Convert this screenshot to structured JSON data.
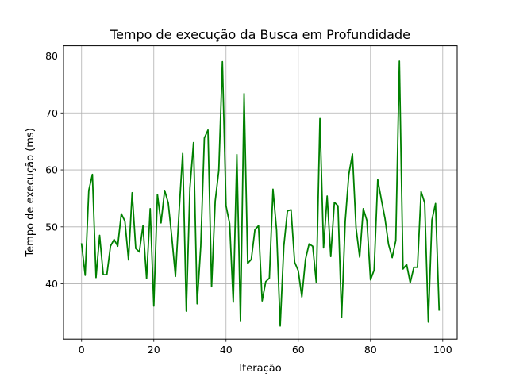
{
  "chart_data": {
    "type": "line",
    "title": "Tempo de execução da Busca em Profundidade",
    "xlabel": "Iteração",
    "ylabel": "Tempo de execução (ms)",
    "xlim": [
      -5,
      104
    ],
    "ylim": [
      30.3,
      81.8
    ],
    "xticks": [
      0,
      20,
      40,
      60,
      80,
      100
    ],
    "yticks": [
      40,
      50,
      60,
      70,
      80
    ],
    "grid": true,
    "line_color": "#008000",
    "series": [
      {
        "x": [
          0,
          1,
          2,
          3,
          4,
          5,
          6,
          7,
          8,
          9,
          10,
          11,
          12,
          13,
          14,
          15,
          16,
          17,
          18,
          19,
          20,
          21,
          22,
          23,
          24,
          25,
          26,
          27,
          28,
          29,
          30,
          31,
          32,
          33,
          34,
          35,
          36,
          37,
          38,
          39,
          40,
          41,
          42,
          43,
          44,
          45,
          46,
          47,
          48,
          49,
          50,
          51,
          52,
          53,
          54,
          55,
          56,
          57,
          58,
          59,
          60,
          61,
          62,
          63,
          64,
          65,
          66,
          67,
          68,
          69,
          70,
          71,
          72,
          73,
          74,
          75,
          76,
          77,
          78,
          79,
          80,
          81,
          82,
          83,
          84,
          85,
          86,
          87,
          88,
          89,
          90,
          91,
          92,
          93,
          94,
          95,
          96,
          97,
          98,
          99
        ],
        "y": [
          47.0,
          41.5,
          56.4,
          59.2,
          41.1,
          48.5,
          41.6,
          41.6,
          46.6,
          47.8,
          46.6,
          52.3,
          51.0,
          44.2,
          56.0,
          46.2,
          45.6,
          50.2,
          40.9,
          53.2,
          36.1,
          55.7,
          50.7,
          56.4,
          54.2,
          48.1,
          41.3,
          52.7,
          62.9,
          35.2,
          56.8,
          64.8,
          36.5,
          46.6,
          65.6,
          67.0,
          39.5,
          54.5,
          59.9,
          79.0,
          53.7,
          50.6,
          36.8,
          62.7,
          33.4,
          73.4,
          43.6,
          44.3,
          49.5,
          50.2,
          37.0,
          40.4,
          41.0,
          56.6,
          49.4,
          32.6,
          46.6,
          52.8,
          53.0,
          43.8,
          42.3,
          37.7,
          44.3,
          47.0,
          46.6,
          40.2,
          69.0,
          46.3,
          55.4,
          44.8,
          54.3,
          53.7,
          34.1,
          51.0,
          59.2,
          62.8,
          49.8,
          44.7,
          53.2,
          51.1,
          40.7,
          42.4,
          58.3,
          54.8,
          51.5,
          46.9,
          44.6,
          47.6,
          79.1,
          42.6,
          43.4,
          40.2,
          42.9,
          42.9,
          56.2,
          54.2,
          33.3,
          51.2,
          54.1,
          35.4
        ]
      }
    ]
  }
}
